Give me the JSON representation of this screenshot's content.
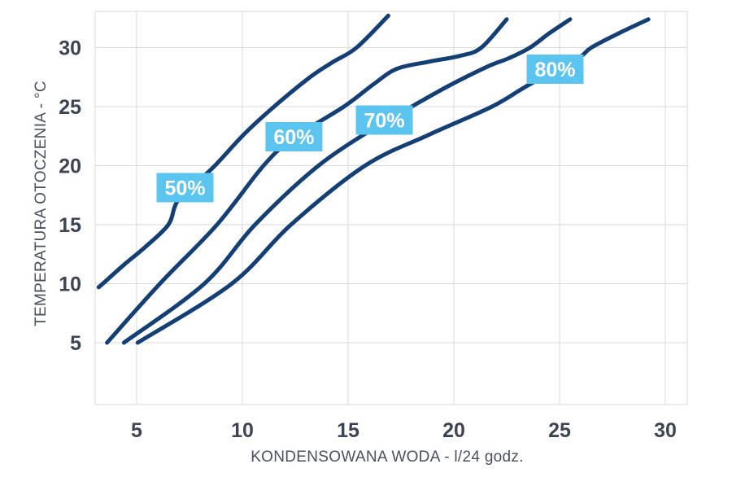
{
  "chart_data": {
    "type": "line",
    "title": "",
    "xlabel": "KONDENSOWANA WODA - l/24 godz.",
    "ylabel": "TEMPERATURA OTOCZENIA - °C",
    "x_ticks": [
      5,
      10,
      15,
      20,
      25,
      30
    ],
    "y_ticks": [
      5,
      10,
      15,
      20,
      25,
      30
    ],
    "xlim": [
      3,
      31
    ],
    "ylim": [
      0,
      33.1
    ],
    "grid": true,
    "legend_position": "inline-labels-on-curves",
    "series": [
      {
        "name": "50%",
        "label_anchor": [
          7.29,
          18.14
        ],
        "points": [
          [
            3.2,
            9.7
          ],
          [
            3.4,
            10
          ],
          [
            4.4,
            11.6
          ],
          [
            5.4,
            13.1
          ],
          [
            6.5,
            15
          ],
          [
            6.9,
            16.9
          ],
          [
            7.8,
            18.5
          ],
          [
            8.7,
            20
          ],
          [
            10.1,
            22.7
          ],
          [
            11.5,
            25
          ],
          [
            13.2,
            27.5
          ],
          [
            14.3,
            28.8
          ],
          [
            15.4,
            30
          ],
          [
            16.9,
            32.7
          ]
        ]
      },
      {
        "name": "60%",
        "label_anchor": [
          12.44,
          22.45
        ],
        "points": [
          [
            3.6,
            5
          ],
          [
            6.1,
            10
          ],
          [
            8.8,
            15
          ],
          [
            11.0,
            20
          ],
          [
            12.4,
            22.3
          ],
          [
            14.8,
            25
          ],
          [
            16.2,
            26.9
          ],
          [
            17.3,
            28.2
          ],
          [
            18.8,
            28.8
          ],
          [
            20.3,
            29.3
          ],
          [
            21.3,
            30
          ],
          [
            22.5,
            32.4
          ]
        ]
      },
      {
        "name": "70%",
        "label_anchor": [
          16.71,
          23.86
        ],
        "points": [
          [
            4.4,
            5
          ],
          [
            8.2,
            10
          ],
          [
            10.6,
            15
          ],
          [
            13.6,
            20
          ],
          [
            16.7,
            23.7
          ],
          [
            18.0,
            25
          ],
          [
            19.8,
            26.8
          ],
          [
            21.6,
            28.4
          ],
          [
            22.6,
            29.1
          ],
          [
            23.6,
            30
          ],
          [
            24.5,
            31.2
          ],
          [
            25.5,
            32.4
          ]
        ]
      },
      {
        "name": "80%",
        "label_anchor": [
          24.79,
          28.17
        ],
        "points": [
          [
            5.05,
            5
          ],
          [
            9.5,
            10
          ],
          [
            12.3,
            15
          ],
          [
            15.8,
            20
          ],
          [
            18.8,
            22.6
          ],
          [
            21.8,
            25
          ],
          [
            23.5,
            26.8
          ],
          [
            25.8,
            29.0
          ],
          [
            26.5,
            30
          ],
          [
            27.9,
            31.3
          ],
          [
            29.2,
            32.4
          ]
        ]
      }
    ],
    "colors": {
      "line": "#143F75",
      "label_bg": "#5CC5EF",
      "label_text": "#FFFFFF",
      "grid": "#DADADD",
      "tick_text": "#3D4454",
      "axis_title": "#4A505E",
      "background": "#FFFFFF"
    }
  }
}
